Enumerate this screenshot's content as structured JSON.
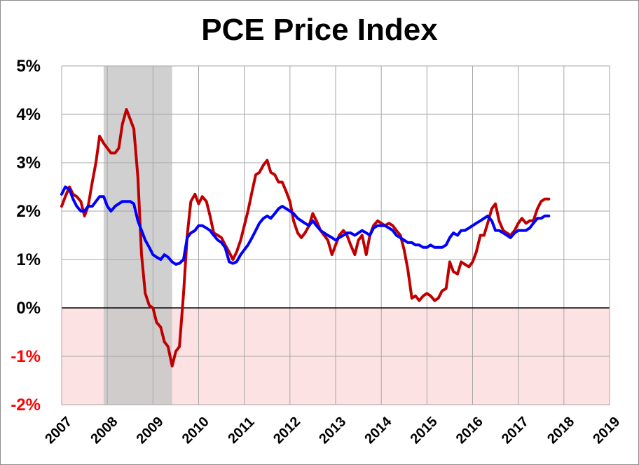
{
  "chart_data": {
    "type": "line",
    "title": "PCE Price Index",
    "xlabel": "",
    "ylabel": "",
    "x_ticks": [
      "2007",
      "2008",
      "2009",
      "2010",
      "2011",
      "2012",
      "2013",
      "2014",
      "2015",
      "2016",
      "2017",
      "2018",
      "2019"
    ],
    "y_ticks": [
      "5%",
      "4%",
      "3%",
      "2%",
      "1%",
      "0%",
      "-1%",
      "-2%"
    ],
    "ylim": [
      -2,
      5
    ],
    "xlim": [
      2007.0,
      2019.0
    ],
    "grid": true,
    "shaded_recession": [
      2007.92,
      2009.42
    ],
    "negative_region_color": "#fde2e4",
    "recession_color": "#c8c8c8",
    "series": [
      {
        "color": "#c00000",
        "values": [
          [
            2007.0,
            2.1
          ],
          [
            2007.08,
            2.3
          ],
          [
            2007.17,
            2.5
          ],
          [
            2007.25,
            2.35
          ],
          [
            2007.33,
            2.3
          ],
          [
            2007.42,
            2.2
          ],
          [
            2007.5,
            1.9
          ],
          [
            2007.58,
            2.1
          ],
          [
            2007.67,
            2.6
          ],
          [
            2007.75,
            3.0
          ],
          [
            2007.83,
            3.55
          ],
          [
            2007.92,
            3.4
          ],
          [
            2008.0,
            3.3
          ],
          [
            2008.08,
            3.2
          ],
          [
            2008.17,
            3.2
          ],
          [
            2008.25,
            3.3
          ],
          [
            2008.33,
            3.8
          ],
          [
            2008.42,
            4.1
          ],
          [
            2008.5,
            3.9
          ],
          [
            2008.58,
            3.7
          ],
          [
            2008.67,
            2.7
          ],
          [
            2008.75,
            1.1
          ],
          [
            2008.83,
            0.3
          ],
          [
            2008.92,
            0.05
          ],
          [
            2009.0,
            0.0
          ],
          [
            2009.08,
            -0.3
          ],
          [
            2009.17,
            -0.4
          ],
          [
            2009.25,
            -0.7
          ],
          [
            2009.33,
            -0.8
          ],
          [
            2009.42,
            -1.2
          ],
          [
            2009.5,
            -0.9
          ],
          [
            2009.58,
            -0.8
          ],
          [
            2009.67,
            0.3
          ],
          [
            2009.75,
            1.5
          ],
          [
            2009.83,
            2.2
          ],
          [
            2009.92,
            2.35
          ],
          [
            2010.0,
            2.15
          ],
          [
            2010.08,
            2.3
          ],
          [
            2010.17,
            2.2
          ],
          [
            2010.25,
            1.9
          ],
          [
            2010.33,
            1.55
          ],
          [
            2010.42,
            1.5
          ],
          [
            2010.5,
            1.45
          ],
          [
            2010.58,
            1.3
          ],
          [
            2010.67,
            1.15
          ],
          [
            2010.75,
            1.0
          ],
          [
            2010.83,
            1.15
          ],
          [
            2010.92,
            1.4
          ],
          [
            2011.0,
            1.7
          ],
          [
            2011.08,
            2.0
          ],
          [
            2011.17,
            2.4
          ],
          [
            2011.25,
            2.75
          ],
          [
            2011.33,
            2.8
          ],
          [
            2011.42,
            2.95
          ],
          [
            2011.5,
            3.05
          ],
          [
            2011.58,
            2.8
          ],
          [
            2011.67,
            2.75
          ],
          [
            2011.75,
            2.6
          ],
          [
            2011.83,
            2.6
          ],
          [
            2011.92,
            2.4
          ],
          [
            2012.0,
            2.2
          ],
          [
            2012.08,
            1.8
          ],
          [
            2012.17,
            1.55
          ],
          [
            2012.25,
            1.45
          ],
          [
            2012.33,
            1.55
          ],
          [
            2012.42,
            1.7
          ],
          [
            2012.5,
            1.95
          ],
          [
            2012.58,
            1.8
          ],
          [
            2012.67,
            1.6
          ],
          [
            2012.75,
            1.5
          ],
          [
            2012.83,
            1.4
          ],
          [
            2012.92,
            1.1
          ],
          [
            2013.0,
            1.3
          ],
          [
            2013.08,
            1.5
          ],
          [
            2013.17,
            1.6
          ],
          [
            2013.25,
            1.5
          ],
          [
            2013.33,
            1.3
          ],
          [
            2013.42,
            1.1
          ],
          [
            2013.5,
            1.4
          ],
          [
            2013.58,
            1.5
          ],
          [
            2013.67,
            1.1
          ],
          [
            2013.75,
            1.5
          ],
          [
            2013.83,
            1.7
          ],
          [
            2013.92,
            1.8
          ],
          [
            2014.0,
            1.75
          ],
          [
            2014.08,
            1.7
          ],
          [
            2014.17,
            1.75
          ],
          [
            2014.25,
            1.7
          ],
          [
            2014.33,
            1.6
          ],
          [
            2014.42,
            1.5
          ],
          [
            2014.5,
            1.2
          ],
          [
            2014.58,
            0.8
          ],
          [
            2014.67,
            0.2
          ],
          [
            2014.75,
            0.25
          ],
          [
            2014.83,
            0.15
          ],
          [
            2014.92,
            0.25
          ],
          [
            2015.0,
            0.3
          ],
          [
            2015.08,
            0.25
          ],
          [
            2015.17,
            0.15
          ],
          [
            2015.25,
            0.2
          ],
          [
            2015.33,
            0.35
          ],
          [
            2015.42,
            0.4
          ],
          [
            2015.5,
            0.95
          ],
          [
            2015.58,
            0.75
          ],
          [
            2015.67,
            0.7
          ],
          [
            2015.75,
            0.95
          ],
          [
            2015.83,
            0.9
          ],
          [
            2015.92,
            0.85
          ],
          [
            2016.0,
            0.95
          ],
          [
            2016.08,
            1.15
          ],
          [
            2016.17,
            1.5
          ],
          [
            2016.25,
            1.5
          ],
          [
            2016.33,
            1.75
          ],
          [
            2016.42,
            2.05
          ],
          [
            2016.5,
            2.15
          ],
          [
            2016.58,
            1.8
          ],
          [
            2016.67,
            1.6
          ],
          [
            2016.75,
            1.55
          ],
          [
            2016.83,
            1.5
          ],
          [
            2016.92,
            1.6
          ],
          [
            2017.0,
            1.75
          ],
          [
            2017.08,
            1.85
          ],
          [
            2017.17,
            1.75
          ],
          [
            2017.25,
            1.8
          ],
          [
            2017.33,
            1.8
          ],
          [
            2017.42,
            2.05
          ],
          [
            2017.5,
            2.2
          ],
          [
            2017.58,
            2.25
          ],
          [
            2017.67,
            2.25
          ]
        ]
      },
      {
        "color": "#0000ff",
        "values": [
          [
            2007.0,
            2.35
          ],
          [
            2007.08,
            2.5
          ],
          [
            2007.17,
            2.45
          ],
          [
            2007.25,
            2.25
          ],
          [
            2007.33,
            2.1
          ],
          [
            2007.42,
            2.0
          ],
          [
            2007.5,
            2.0
          ],
          [
            2007.58,
            2.1
          ],
          [
            2007.67,
            2.1
          ],
          [
            2007.75,
            2.2
          ],
          [
            2007.83,
            2.3
          ],
          [
            2007.92,
            2.3
          ],
          [
            2008.0,
            2.1
          ],
          [
            2008.08,
            2.0
          ],
          [
            2008.17,
            2.1
          ],
          [
            2008.25,
            2.15
          ],
          [
            2008.33,
            2.2
          ],
          [
            2008.42,
            2.2
          ],
          [
            2008.5,
            2.2
          ],
          [
            2008.58,
            2.15
          ],
          [
            2008.67,
            1.8
          ],
          [
            2008.75,
            1.6
          ],
          [
            2008.83,
            1.4
          ],
          [
            2008.92,
            1.25
          ],
          [
            2009.0,
            1.1
          ],
          [
            2009.08,
            1.05
          ],
          [
            2009.17,
            1.0
          ],
          [
            2009.25,
            1.1
          ],
          [
            2009.33,
            1.05
          ],
          [
            2009.42,
            0.95
          ],
          [
            2009.5,
            0.9
          ],
          [
            2009.58,
            0.92
          ],
          [
            2009.67,
            1.0
          ],
          [
            2009.75,
            1.45
          ],
          [
            2009.83,
            1.55
          ],
          [
            2009.92,
            1.6
          ],
          [
            2010.0,
            1.7
          ],
          [
            2010.08,
            1.7
          ],
          [
            2010.17,
            1.65
          ],
          [
            2010.25,
            1.6
          ],
          [
            2010.33,
            1.5
          ],
          [
            2010.42,
            1.4
          ],
          [
            2010.5,
            1.35
          ],
          [
            2010.58,
            1.25
          ],
          [
            2010.67,
            0.95
          ],
          [
            2010.75,
            0.92
          ],
          [
            2010.83,
            0.95
          ],
          [
            2010.92,
            1.1
          ],
          [
            2011.0,
            1.2
          ],
          [
            2011.08,
            1.3
          ],
          [
            2011.17,
            1.45
          ],
          [
            2011.25,
            1.6
          ],
          [
            2011.33,
            1.75
          ],
          [
            2011.42,
            1.85
          ],
          [
            2011.5,
            1.9
          ],
          [
            2011.58,
            1.85
          ],
          [
            2011.67,
            1.95
          ],
          [
            2011.75,
            2.05
          ],
          [
            2011.83,
            2.1
          ],
          [
            2011.92,
            2.05
          ],
          [
            2012.0,
            2.0
          ],
          [
            2012.08,
            1.95
          ],
          [
            2012.17,
            1.85
          ],
          [
            2012.25,
            1.8
          ],
          [
            2012.33,
            1.75
          ],
          [
            2012.42,
            1.7
          ],
          [
            2012.5,
            1.8
          ],
          [
            2012.58,
            1.7
          ],
          [
            2012.67,
            1.6
          ],
          [
            2012.75,
            1.55
          ],
          [
            2012.83,
            1.5
          ],
          [
            2012.92,
            1.45
          ],
          [
            2013.0,
            1.4
          ],
          [
            2013.08,
            1.45
          ],
          [
            2013.17,
            1.5
          ],
          [
            2013.25,
            1.55
          ],
          [
            2013.33,
            1.55
          ],
          [
            2013.42,
            1.5
          ],
          [
            2013.5,
            1.55
          ],
          [
            2013.58,
            1.6
          ],
          [
            2013.67,
            1.55
          ],
          [
            2013.75,
            1.5
          ],
          [
            2013.83,
            1.65
          ],
          [
            2013.92,
            1.7
          ],
          [
            2014.0,
            1.7
          ],
          [
            2014.08,
            1.7
          ],
          [
            2014.17,
            1.65
          ],
          [
            2014.25,
            1.6
          ],
          [
            2014.33,
            1.5
          ],
          [
            2014.42,
            1.45
          ],
          [
            2014.5,
            1.4
          ],
          [
            2014.58,
            1.35
          ],
          [
            2014.67,
            1.35
          ],
          [
            2014.75,
            1.3
          ],
          [
            2014.83,
            1.3
          ],
          [
            2014.92,
            1.25
          ],
          [
            2015.0,
            1.25
          ],
          [
            2015.08,
            1.3
          ],
          [
            2015.17,
            1.25
          ],
          [
            2015.25,
            1.25
          ],
          [
            2015.33,
            1.25
          ],
          [
            2015.42,
            1.3
          ],
          [
            2015.5,
            1.45
          ],
          [
            2015.58,
            1.55
          ],
          [
            2015.67,
            1.5
          ],
          [
            2015.75,
            1.6
          ],
          [
            2015.83,
            1.6
          ],
          [
            2015.92,
            1.65
          ],
          [
            2016.0,
            1.7
          ],
          [
            2016.08,
            1.75
          ],
          [
            2016.17,
            1.8
          ],
          [
            2016.25,
            1.85
          ],
          [
            2016.33,
            1.9
          ],
          [
            2016.42,
            1.8
          ],
          [
            2016.5,
            1.6
          ],
          [
            2016.58,
            1.6
          ],
          [
            2016.67,
            1.55
          ],
          [
            2016.75,
            1.5
          ],
          [
            2016.83,
            1.45
          ],
          [
            2016.92,
            1.55
          ],
          [
            2017.0,
            1.6
          ],
          [
            2017.08,
            1.6
          ],
          [
            2017.17,
            1.6
          ],
          [
            2017.25,
            1.65
          ],
          [
            2017.33,
            1.75
          ],
          [
            2017.42,
            1.85
          ],
          [
            2017.5,
            1.85
          ],
          [
            2017.58,
            1.9
          ],
          [
            2017.67,
            1.9
          ]
        ]
      }
    ]
  }
}
